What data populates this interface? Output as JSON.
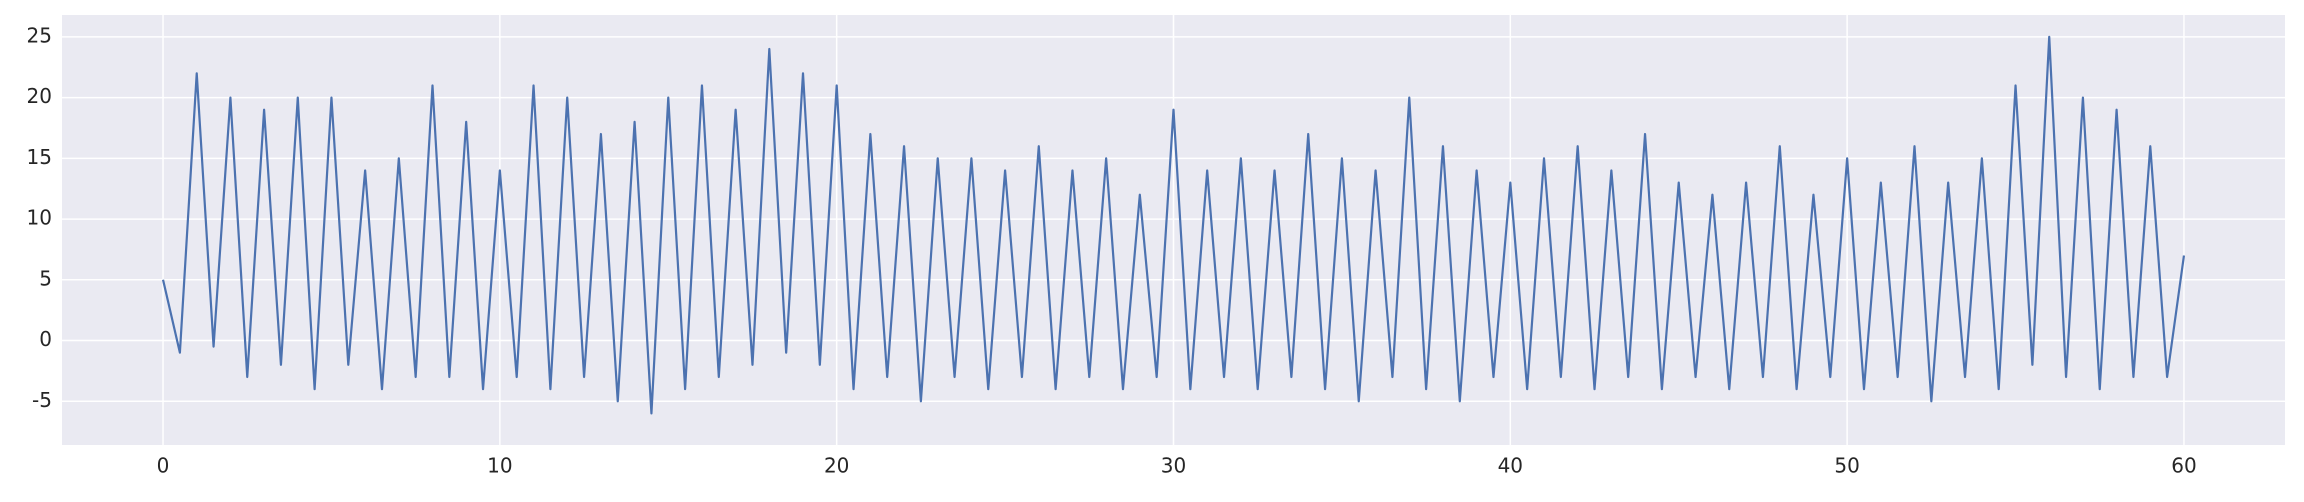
{
  "chart_data": {
    "type": "line",
    "color": "#4c72b0",
    "background": "#eaeaf2",
    "grid": true,
    "x": [
      0,
      0.5,
      1,
      1.5,
      2,
      2.5,
      3,
      3.5,
      4,
      4.5,
      5,
      5.5,
      6,
      6.5,
      7,
      7.5,
      8,
      8.5,
      9,
      9.5,
      10,
      10.5,
      11,
      11.5,
      12,
      12.5,
      13,
      13.5,
      14,
      14.5,
      15,
      15.5,
      16,
      16.5,
      17,
      17.5,
      18,
      18.5,
      19,
      19.5,
      20,
      20.5,
      21,
      21.5,
      22,
      22.5,
      23,
      23.5,
      24,
      24.5,
      25,
      25.5,
      26,
      26.5,
      27,
      27.5,
      28,
      28.5,
      29,
      29.5,
      30,
      30.5,
      31,
      31.5,
      32,
      32.5,
      33,
      33.5,
      34,
      34.5,
      35,
      35.5,
      36,
      36.5,
      37,
      37.5,
      38,
      38.5,
      39,
      39.5,
      40,
      40.5,
      41,
      41.5,
      42,
      42.5,
      43,
      43.5,
      44,
      44.5,
      45,
      45.5,
      46,
      46.5,
      47,
      47.5,
      48,
      48.5,
      49,
      49.5,
      50,
      50.5,
      51,
      51.5,
      52,
      52.5,
      53,
      53.5,
      54,
      54.5,
      55,
      55.5,
      56,
      56.5,
      57,
      57.5,
      58,
      58.5,
      59,
      59.5,
      60
    ],
    "values": [
      5,
      -1,
      22,
      -0.5,
      20,
      -3,
      19,
      -2,
      20,
      -4,
      20,
      -2,
      14,
      -4,
      15,
      -3,
      21,
      -3,
      18,
      -4,
      14,
      -3,
      21,
      -4,
      20,
      -3,
      17,
      -5,
      18,
      -6,
      20,
      -4,
      21,
      -3,
      19,
      -2,
      24,
      -1,
      22,
      -2,
      21,
      -4,
      17,
      -3,
      16,
      -5,
      15,
      -3,
      15,
      -4,
      14,
      -3,
      16,
      -4,
      14,
      -3,
      15,
      -4,
      12,
      -3,
      19,
      -4,
      14,
      -3,
      15,
      -4,
      14,
      -3,
      17,
      -4,
      15,
      -5,
      14,
      -3,
      20,
      -4,
      16,
      -5,
      14,
      -3,
      13,
      -4,
      15,
      -3,
      16,
      -4,
      14,
      -3,
      17,
      -4,
      13,
      -3,
      12,
      -4,
      13,
      -3,
      16,
      -4,
      12,
      -3,
      15,
      -4,
      13,
      -3,
      16,
      -5,
      13,
      -3,
      15,
      -4,
      21,
      -2,
      25,
      -3,
      20,
      -4,
      19,
      -3,
      16,
      -3,
      7
    ],
    "xlim": [
      -3,
      63
    ],
    "ylim": [
      -8.6,
      26.8
    ],
    "xticks": [
      0,
      10,
      20,
      30,
      40,
      50,
      60
    ],
    "yticks": [
      -5,
      0,
      5,
      10,
      15,
      20,
      25
    ]
  }
}
